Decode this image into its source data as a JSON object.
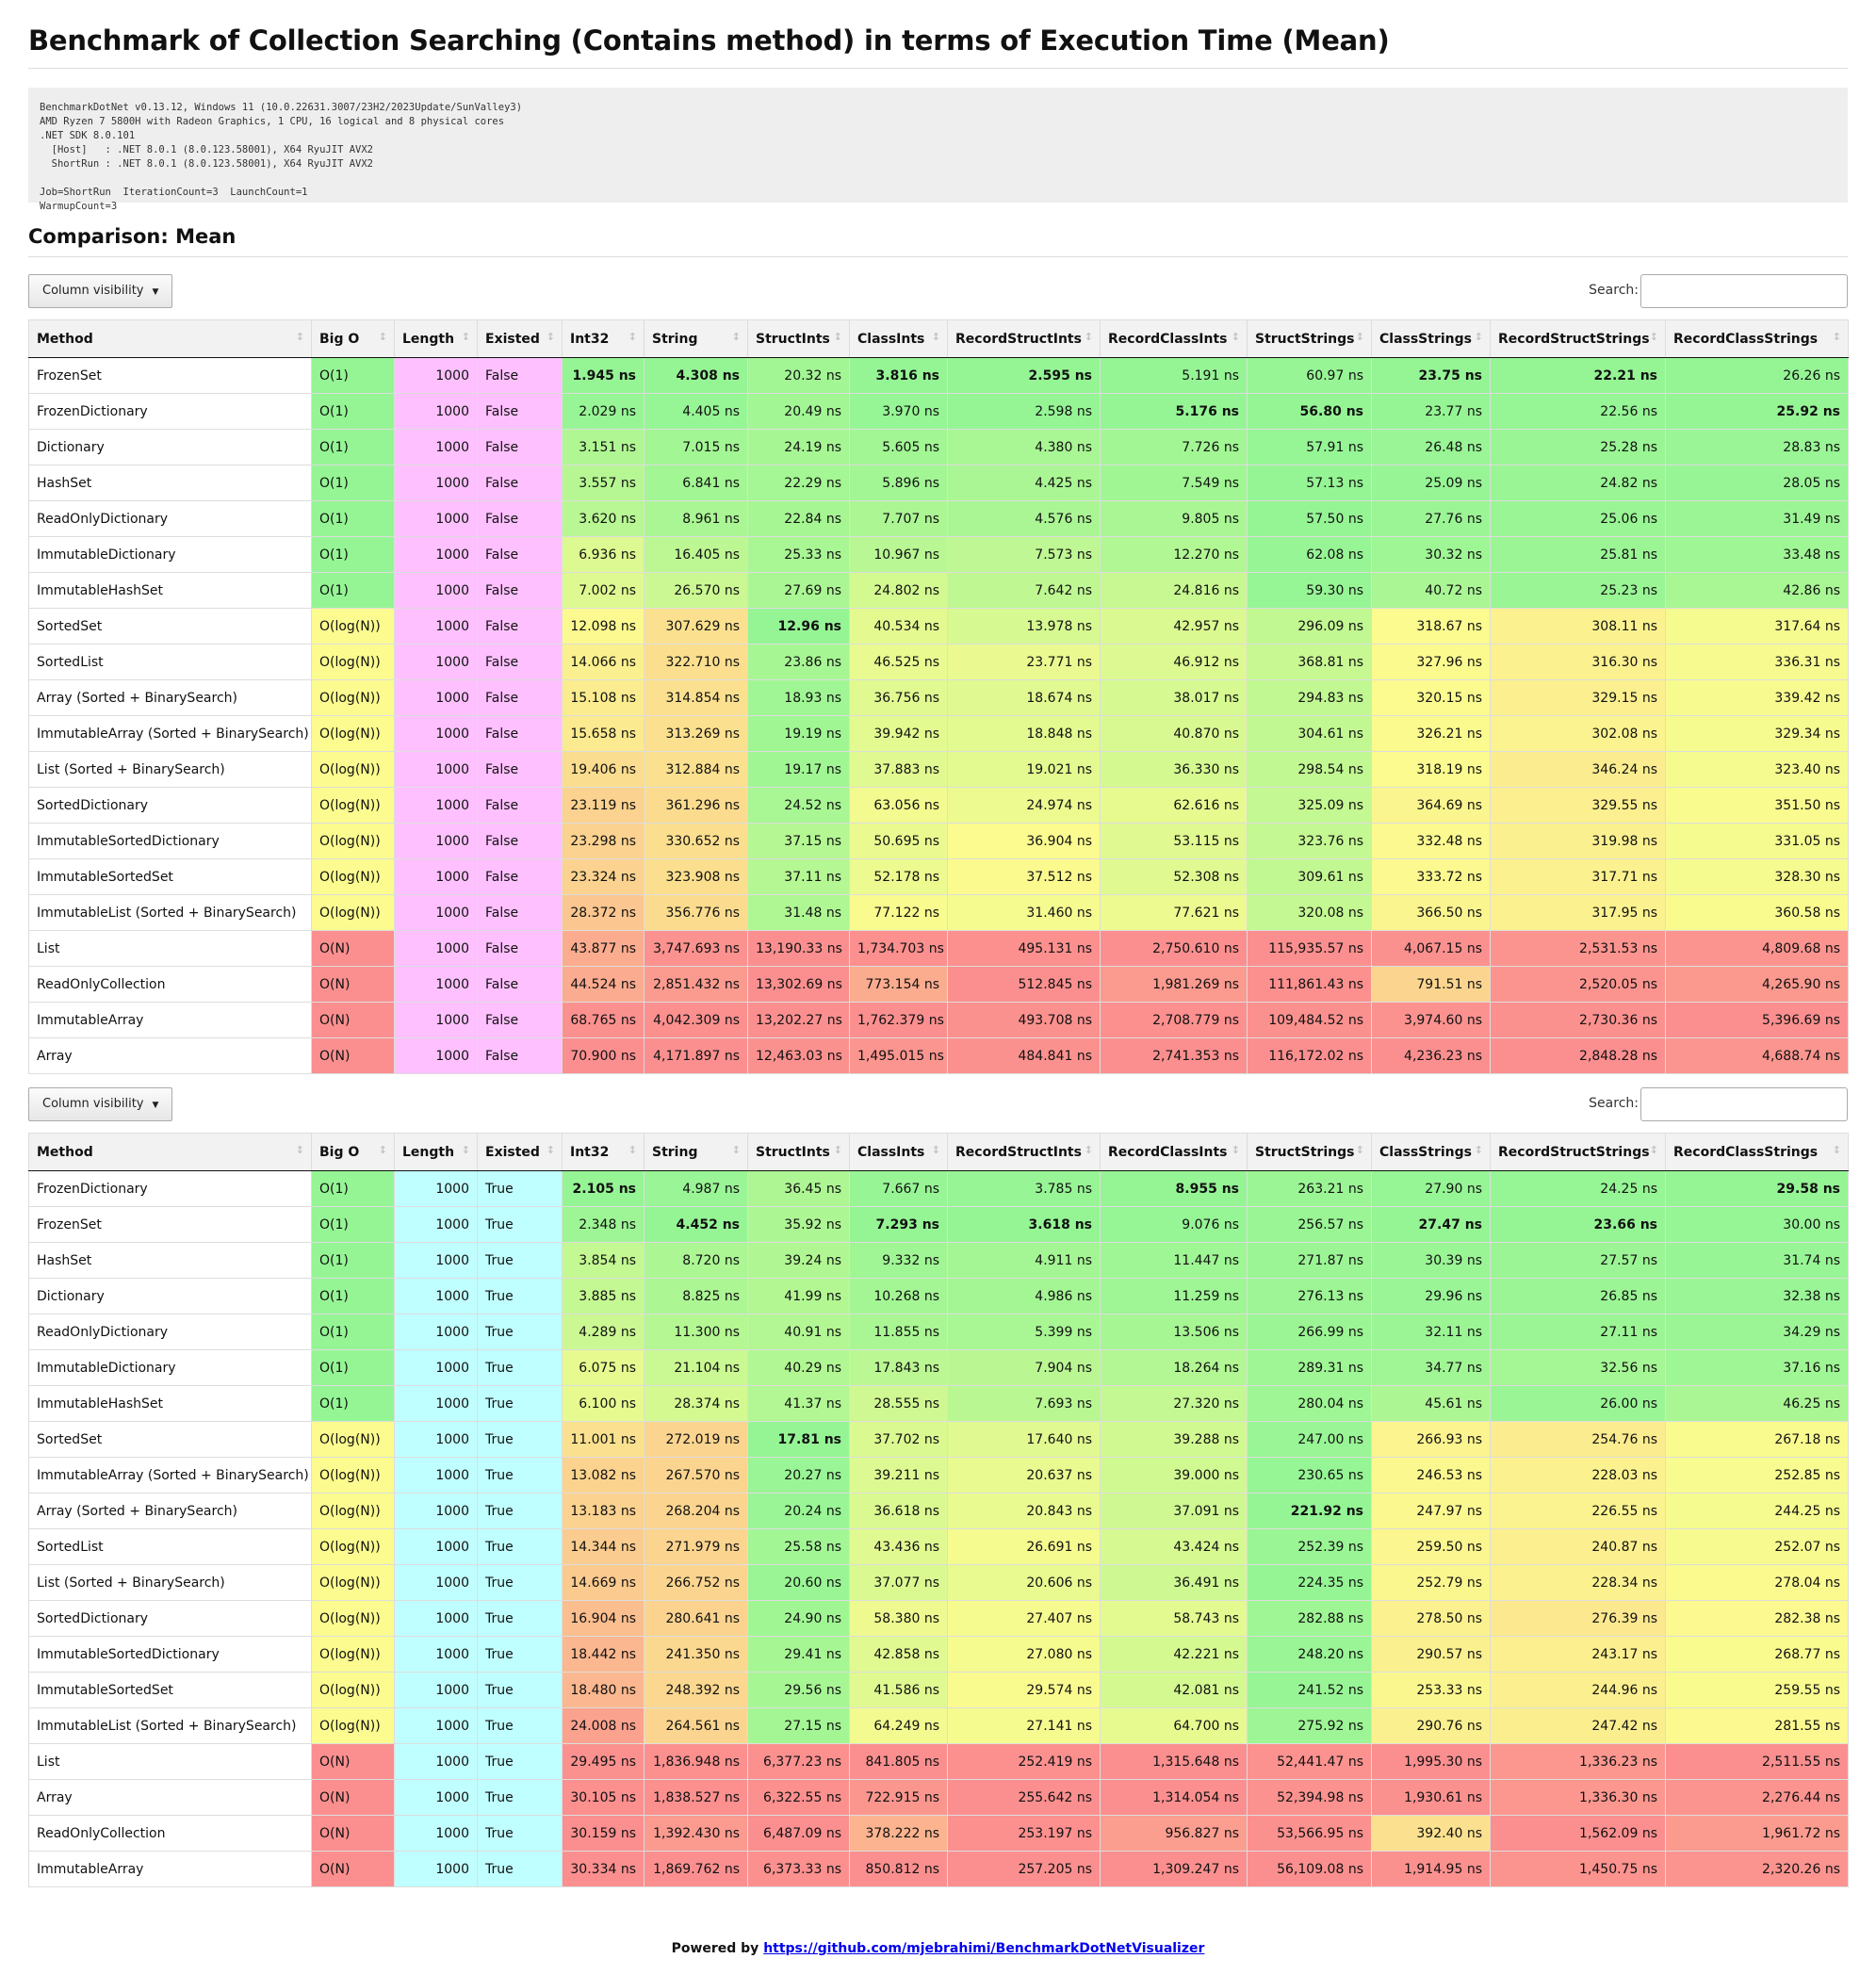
{
  "title": "Benchmark of Collection Searching (Contains method) in terms of Execution Time (Mean)",
  "environment": [
    "BenchmarkDotNet v0.13.12, Windows 11 (10.0.22631.3007/23H2/2023Update/SunValley3)",
    "AMD Ryzen 7 5800H with Radeon Graphics, 1 CPU, 16 logical and 8 physical cores",
    ".NET SDK 8.0.101",
    "  [Host]   : .NET 8.0.1 (8.0.123.58001), X64 RyuJIT AVX2",
    "  ShortRun : .NET 8.0.1 (8.0.123.58001), X64 RyuJIT AVX2",
    "",
    "Job=ShortRun  IterationCount=3  LaunchCount=1",
    "WarmupCount=3"
  ],
  "section_title": "Comparison: Mean",
  "toolbar": {
    "column_visibility_label": "Column visibility",
    "caret": "▼",
    "search_label": "Search:",
    "search_value": ""
  },
  "columns": [
    "Method",
    "Big O",
    "Length",
    "Existed",
    "Int32",
    "String",
    "StructInts",
    "ClassInts",
    "RecordStructInts",
    "RecordClassInts",
    "StructStrings",
    "ClassStrings",
    "RecordStructStrings",
    "RecordClassStrings"
  ],
  "sort_icon": "↕",
  "colors": {
    "bigO": {
      "O(1)": "#95f595",
      "O(log(N))": "#fbfb8f",
      "O(N)": "#fb8f8f"
    },
    "length_table1": "#ffc0ff",
    "length_table2": "#c0ffff",
    "scale_best": "#95f595",
    "scale_mid": "#fbfb8f",
    "scale_worst": "#fb8f8f"
  },
  "tables": [
    {
      "rows": [
        {
          "method": "FrozenSet",
          "bigO": "O(1)",
          "length": "1000",
          "existed": "False",
          "values": [
            "1.945 ns",
            "4.308 ns",
            "20.32 ns",
            "3.816 ns",
            "2.595 ns",
            "5.191 ns",
            "60.97 ns",
            "23.75 ns",
            "22.21 ns",
            "26.26 ns"
          ]
        },
        {
          "method": "FrozenDictionary",
          "bigO": "O(1)",
          "length": "1000",
          "existed": "False",
          "values": [
            "2.029 ns",
            "4.405 ns",
            "20.49 ns",
            "3.970 ns",
            "2.598 ns",
            "5.176 ns",
            "56.80 ns",
            "23.77 ns",
            "22.56 ns",
            "25.92 ns"
          ]
        },
        {
          "method": "Dictionary",
          "bigO": "O(1)",
          "length": "1000",
          "existed": "False",
          "values": [
            "3.151 ns",
            "7.015 ns",
            "24.19 ns",
            "5.605 ns",
            "4.380 ns",
            "7.726 ns",
            "57.91 ns",
            "26.48 ns",
            "25.28 ns",
            "28.83 ns"
          ]
        },
        {
          "method": "HashSet",
          "bigO": "O(1)",
          "length": "1000",
          "existed": "False",
          "values": [
            "3.557 ns",
            "6.841 ns",
            "22.29 ns",
            "5.896 ns",
            "4.425 ns",
            "7.549 ns",
            "57.13 ns",
            "25.09 ns",
            "24.82 ns",
            "28.05 ns"
          ]
        },
        {
          "method": "ReadOnlyDictionary",
          "bigO": "O(1)",
          "length": "1000",
          "existed": "False",
          "values": [
            "3.620 ns",
            "8.961 ns",
            "22.84 ns",
            "7.707 ns",
            "4.576 ns",
            "9.805 ns",
            "57.50 ns",
            "27.76 ns",
            "25.06 ns",
            "31.49 ns"
          ]
        },
        {
          "method": "ImmutableDictionary",
          "bigO": "O(1)",
          "length": "1000",
          "existed": "False",
          "values": [
            "6.936 ns",
            "16.405 ns",
            "25.33 ns",
            "10.967 ns",
            "7.573 ns",
            "12.270 ns",
            "62.08 ns",
            "30.32 ns",
            "25.81 ns",
            "33.48 ns"
          ]
        },
        {
          "method": "ImmutableHashSet",
          "bigO": "O(1)",
          "length": "1000",
          "existed": "False",
          "values": [
            "7.002 ns",
            "26.570 ns",
            "27.69 ns",
            "24.802 ns",
            "7.642 ns",
            "24.816 ns",
            "59.30 ns",
            "40.72 ns",
            "25.23 ns",
            "42.86 ns"
          ]
        },
        {
          "method": "SortedSet",
          "bigO": "O(log(N))",
          "length": "1000",
          "existed": "False",
          "values": [
            "12.098 ns",
            "307.629 ns",
            "12.96 ns",
            "40.534 ns",
            "13.978 ns",
            "42.957 ns",
            "296.09 ns",
            "318.67 ns",
            "308.11 ns",
            "317.64 ns"
          ]
        },
        {
          "method": "SortedList",
          "bigO": "O(log(N))",
          "length": "1000",
          "existed": "False",
          "values": [
            "14.066 ns",
            "322.710 ns",
            "23.86 ns",
            "46.525 ns",
            "23.771 ns",
            "46.912 ns",
            "368.81 ns",
            "327.96 ns",
            "316.30 ns",
            "336.31 ns"
          ]
        },
        {
          "method": "Array (Sorted + BinarySearch)",
          "bigO": "O(log(N))",
          "length": "1000",
          "existed": "False",
          "values": [
            "15.108 ns",
            "314.854 ns",
            "18.93 ns",
            "36.756 ns",
            "18.674 ns",
            "38.017 ns",
            "294.83 ns",
            "320.15 ns",
            "329.15 ns",
            "339.42 ns"
          ]
        },
        {
          "method": "ImmutableArray (Sorted + BinarySearch)",
          "bigO": "O(log(N))",
          "length": "1000",
          "existed": "False",
          "values": [
            "15.658 ns",
            "313.269 ns",
            "19.19 ns",
            "39.942 ns",
            "18.848 ns",
            "40.870 ns",
            "304.61 ns",
            "326.21 ns",
            "302.08 ns",
            "329.34 ns"
          ]
        },
        {
          "method": "List (Sorted + BinarySearch)",
          "bigO": "O(log(N))",
          "length": "1000",
          "existed": "False",
          "values": [
            "19.406 ns",
            "312.884 ns",
            "19.17 ns",
            "37.883 ns",
            "19.021 ns",
            "36.330 ns",
            "298.54 ns",
            "318.19 ns",
            "346.24 ns",
            "323.40 ns"
          ]
        },
        {
          "method": "SortedDictionary",
          "bigO": "O(log(N))",
          "length": "1000",
          "existed": "False",
          "values": [
            "23.119 ns",
            "361.296 ns",
            "24.52 ns",
            "63.056 ns",
            "24.974 ns",
            "62.616 ns",
            "325.09 ns",
            "364.69 ns",
            "329.55 ns",
            "351.50 ns"
          ]
        },
        {
          "method": "ImmutableSortedDictionary",
          "bigO": "O(log(N))",
          "length": "1000",
          "existed": "False",
          "values": [
            "23.298 ns",
            "330.652 ns",
            "37.15 ns",
            "50.695 ns",
            "36.904 ns",
            "53.115 ns",
            "323.76 ns",
            "332.48 ns",
            "319.98 ns",
            "331.05 ns"
          ]
        },
        {
          "method": "ImmutableSortedSet",
          "bigO": "O(log(N))",
          "length": "1000",
          "existed": "False",
          "values": [
            "23.324 ns",
            "323.908 ns",
            "37.11 ns",
            "52.178 ns",
            "37.512 ns",
            "52.308 ns",
            "309.61 ns",
            "333.72 ns",
            "317.71 ns",
            "328.30 ns"
          ]
        },
        {
          "method": "ImmutableList (Sorted + BinarySearch)",
          "bigO": "O(log(N))",
          "length": "1000",
          "existed": "False",
          "values": [
            "28.372 ns",
            "356.776 ns",
            "31.48 ns",
            "77.122 ns",
            "31.460 ns",
            "77.621 ns",
            "320.08 ns",
            "366.50 ns",
            "317.95 ns",
            "360.58 ns"
          ]
        },
        {
          "method": "List",
          "bigO": "O(N)",
          "length": "1000",
          "existed": "False",
          "values": [
            "43.877 ns",
            "3,747.693 ns",
            "13,190.33 ns",
            "1,734.703 ns",
            "495.131 ns",
            "2,750.610 ns",
            "115,935.57 ns",
            "4,067.15 ns",
            "2,531.53 ns",
            "4,809.68 ns"
          ]
        },
        {
          "method": "ReadOnlyCollection",
          "bigO": "O(N)",
          "length": "1000",
          "existed": "False",
          "values": [
            "44.524 ns",
            "2,851.432 ns",
            "13,302.69 ns",
            "773.154 ns",
            "512.845 ns",
            "1,981.269 ns",
            "111,861.43 ns",
            "791.51 ns",
            "2,520.05 ns",
            "4,265.90 ns"
          ]
        },
        {
          "method": "ImmutableArray",
          "bigO": "O(N)",
          "length": "1000",
          "existed": "False",
          "values": [
            "68.765 ns",
            "4,042.309 ns",
            "13,202.27 ns",
            "1,762.379 ns",
            "493.708 ns",
            "2,708.779 ns",
            "109,484.52 ns",
            "3,974.60 ns",
            "2,730.36 ns",
            "5,396.69 ns"
          ]
        },
        {
          "method": "Array",
          "bigO": "O(N)",
          "length": "1000",
          "existed": "False",
          "values": [
            "70.900 ns",
            "4,171.897 ns",
            "12,463.03 ns",
            "1,495.015 ns",
            "484.841 ns",
            "2,741.353 ns",
            "116,172.02 ns",
            "4,236.23 ns",
            "2,848.28 ns",
            "4,688.74 ns"
          ]
        }
      ]
    },
    {
      "rows": [
        {
          "method": "FrozenDictionary",
          "bigO": "O(1)",
          "length": "1000",
          "existed": "True",
          "values": [
            "2.105 ns",
            "4.987 ns",
            "36.45 ns",
            "7.667 ns",
            "3.785 ns",
            "8.955 ns",
            "263.21 ns",
            "27.90 ns",
            "24.25 ns",
            "29.58 ns"
          ]
        },
        {
          "method": "FrozenSet",
          "bigO": "O(1)",
          "length": "1000",
          "existed": "True",
          "values": [
            "2.348 ns",
            "4.452 ns",
            "35.92 ns",
            "7.293 ns",
            "3.618 ns",
            "9.076 ns",
            "256.57 ns",
            "27.47 ns",
            "23.66 ns",
            "30.00 ns"
          ]
        },
        {
          "method": "HashSet",
          "bigO": "O(1)",
          "length": "1000",
          "existed": "True",
          "values": [
            "3.854 ns",
            "8.720 ns",
            "39.24 ns",
            "9.332 ns",
            "4.911 ns",
            "11.447 ns",
            "271.87 ns",
            "30.39 ns",
            "27.57 ns",
            "31.74 ns"
          ]
        },
        {
          "method": "Dictionary",
          "bigO": "O(1)",
          "length": "1000",
          "existed": "True",
          "values": [
            "3.885 ns",
            "8.825 ns",
            "41.99 ns",
            "10.268 ns",
            "4.986 ns",
            "11.259 ns",
            "276.13 ns",
            "29.96 ns",
            "26.85 ns",
            "32.38 ns"
          ]
        },
        {
          "method": "ReadOnlyDictionary",
          "bigO": "O(1)",
          "length": "1000",
          "existed": "True",
          "values": [
            "4.289 ns",
            "11.300 ns",
            "40.91 ns",
            "11.855 ns",
            "5.399 ns",
            "13.506 ns",
            "266.99 ns",
            "32.11 ns",
            "27.11 ns",
            "34.29 ns"
          ]
        },
        {
          "method": "ImmutableDictionary",
          "bigO": "O(1)",
          "length": "1000",
          "existed": "True",
          "values": [
            "6.075 ns",
            "21.104 ns",
            "40.29 ns",
            "17.843 ns",
            "7.904 ns",
            "18.264 ns",
            "289.31 ns",
            "34.77 ns",
            "32.56 ns",
            "37.16 ns"
          ]
        },
        {
          "method": "ImmutableHashSet",
          "bigO": "O(1)",
          "length": "1000",
          "existed": "True",
          "values": [
            "6.100 ns",
            "28.374 ns",
            "41.37 ns",
            "28.555 ns",
            "7.693 ns",
            "27.320 ns",
            "280.04 ns",
            "45.61 ns",
            "26.00 ns",
            "46.25 ns"
          ]
        },
        {
          "method": "SortedSet",
          "bigO": "O(log(N))",
          "length": "1000",
          "existed": "True",
          "values": [
            "11.001 ns",
            "272.019 ns",
            "17.81 ns",
            "37.702 ns",
            "17.640 ns",
            "39.288 ns",
            "247.00 ns",
            "266.93 ns",
            "254.76 ns",
            "267.18 ns"
          ]
        },
        {
          "method": "ImmutableArray (Sorted + BinarySearch)",
          "bigO": "O(log(N))",
          "length": "1000",
          "existed": "True",
          "values": [
            "13.082 ns",
            "267.570 ns",
            "20.27 ns",
            "39.211 ns",
            "20.637 ns",
            "39.000 ns",
            "230.65 ns",
            "246.53 ns",
            "228.03 ns",
            "252.85 ns"
          ]
        },
        {
          "method": "Array (Sorted + BinarySearch)",
          "bigO": "O(log(N))",
          "length": "1000",
          "existed": "True",
          "values": [
            "13.183 ns",
            "268.204 ns",
            "20.24 ns",
            "36.618 ns",
            "20.843 ns",
            "37.091 ns",
            "221.92 ns",
            "247.97 ns",
            "226.55 ns",
            "244.25 ns"
          ]
        },
        {
          "method": "SortedList",
          "bigO": "O(log(N))",
          "length": "1000",
          "existed": "True",
          "values": [
            "14.344 ns",
            "271.979 ns",
            "25.58 ns",
            "43.436 ns",
            "26.691 ns",
            "43.424 ns",
            "252.39 ns",
            "259.50 ns",
            "240.87 ns",
            "252.07 ns"
          ]
        },
        {
          "method": "List (Sorted + BinarySearch)",
          "bigO": "O(log(N))",
          "length": "1000",
          "existed": "True",
          "values": [
            "14.669 ns",
            "266.752 ns",
            "20.60 ns",
            "37.077 ns",
            "20.606 ns",
            "36.491 ns",
            "224.35 ns",
            "252.79 ns",
            "228.34 ns",
            "278.04 ns"
          ]
        },
        {
          "method": "SortedDictionary",
          "bigO": "O(log(N))",
          "length": "1000",
          "existed": "True",
          "values": [
            "16.904 ns",
            "280.641 ns",
            "24.90 ns",
            "58.380 ns",
            "27.407 ns",
            "58.743 ns",
            "282.88 ns",
            "278.50 ns",
            "276.39 ns",
            "282.38 ns"
          ]
        },
        {
          "method": "ImmutableSortedDictionary",
          "bigO": "O(log(N))",
          "length": "1000",
          "existed": "True",
          "values": [
            "18.442 ns",
            "241.350 ns",
            "29.41 ns",
            "42.858 ns",
            "27.080 ns",
            "42.221 ns",
            "248.20 ns",
            "290.57 ns",
            "243.17 ns",
            "268.77 ns"
          ]
        },
        {
          "method": "ImmutableSortedSet",
          "bigO": "O(log(N))",
          "length": "1000",
          "existed": "True",
          "values": [
            "18.480 ns",
            "248.392 ns",
            "29.56 ns",
            "41.586 ns",
            "29.574 ns",
            "42.081 ns",
            "241.52 ns",
            "253.33 ns",
            "244.96 ns",
            "259.55 ns"
          ]
        },
        {
          "method": "ImmutableList (Sorted + BinarySearch)",
          "bigO": "O(log(N))",
          "length": "1000",
          "existed": "True",
          "values": [
            "24.008 ns",
            "264.561 ns",
            "27.15 ns",
            "64.249 ns",
            "27.141 ns",
            "64.700 ns",
            "275.92 ns",
            "290.76 ns",
            "247.42 ns",
            "281.55 ns"
          ]
        },
        {
          "method": "List",
          "bigO": "O(N)",
          "length": "1000",
          "existed": "True",
          "values": [
            "29.495 ns",
            "1,836.948 ns",
            "6,377.23 ns",
            "841.805 ns",
            "252.419 ns",
            "1,315.648 ns",
            "52,441.47 ns",
            "1,995.30 ns",
            "1,336.23 ns",
            "2,511.55 ns"
          ]
        },
        {
          "method": "Array",
          "bigO": "O(N)",
          "length": "1000",
          "existed": "True",
          "values": [
            "30.105 ns",
            "1,838.527 ns",
            "6,322.55 ns",
            "722.915 ns",
            "255.642 ns",
            "1,314.054 ns",
            "52,394.98 ns",
            "1,930.61 ns",
            "1,336.30 ns",
            "2,276.44 ns"
          ]
        },
        {
          "method": "ReadOnlyCollection",
          "bigO": "O(N)",
          "length": "1000",
          "existed": "True",
          "values": [
            "30.159 ns",
            "1,392.430 ns",
            "6,487.09 ns",
            "378.222 ns",
            "253.197 ns",
            "956.827 ns",
            "53,566.95 ns",
            "392.40 ns",
            "1,562.09 ns",
            "1,961.72 ns"
          ]
        },
        {
          "method": "ImmutableArray",
          "bigO": "O(N)",
          "length": "1000",
          "existed": "True",
          "values": [
            "30.334 ns",
            "1,869.762 ns",
            "6,373.33 ns",
            "850.812 ns",
            "257.205 ns",
            "1,309.247 ns",
            "56,109.08 ns",
            "1,914.95 ns",
            "1,450.75 ns",
            "2,320.26 ns"
          ]
        }
      ]
    }
  ],
  "footer": {
    "prefix": "Powered by ",
    "link_text": "https://github.com/mjebrahimi/BenchmarkDotNetVisualizer"
  }
}
